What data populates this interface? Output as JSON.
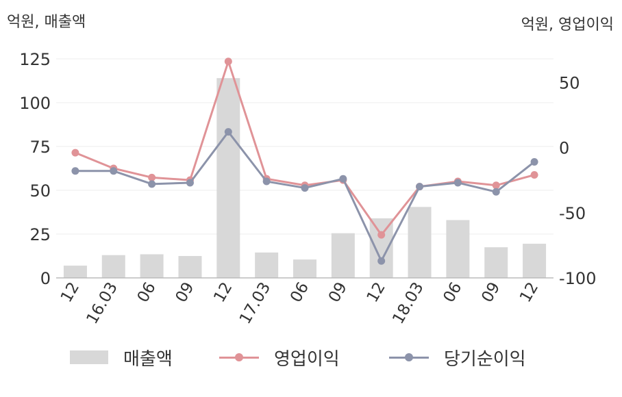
{
  "units": {
    "left": "억원, 매출액",
    "right": "억원, 영업이익"
  },
  "chart_data": {
    "type": "bar+line",
    "categories": [
      "12",
      "16.03",
      "06",
      "09",
      "12",
      "17.03",
      "06",
      "09",
      "12",
      "18.03",
      "06",
      "09",
      "12"
    ],
    "series": [
      {
        "name": "매출액",
        "type": "bar",
        "axis": "left",
        "color": "#d8d8d8",
        "values": [
          7,
          13,
          13.5,
          12.5,
          114,
          14.5,
          10.5,
          25.5,
          34,
          40.5,
          33,
          17.5,
          19.5
        ]
      },
      {
        "name": "영업이익",
        "type": "line",
        "axis": "right",
        "color": "#e09397",
        "values": [
          -4,
          -16,
          -23,
          -25,
          66,
          -24,
          -29,
          -25,
          -67,
          -30,
          -26,
          -29,
          -21
        ]
      },
      {
        "name": "당기순이익",
        "type": "line",
        "axis": "right",
        "color": "#8c93aa",
        "values": [
          -18,
          -18,
          -28,
          -27,
          12,
          -26,
          -31,
          -24,
          -87,
          -30,
          -27,
          -34,
          -11
        ]
      }
    ],
    "left_axis": {
      "ylim": [
        0,
        125
      ],
      "ticks": [
        "0",
        "25",
        "50",
        "75",
        "100",
        "125"
      ],
      "tick_values": [
        0,
        25,
        50,
        75,
        100,
        125
      ]
    },
    "right_axis": {
      "ylim": [
        -100,
        68
      ],
      "ticks": [
        "-100",
        "-50",
        "0",
        "50"
      ],
      "tick_values": [
        -100,
        -50,
        0,
        50
      ]
    },
    "grid": true,
    "legend_position": "bottom"
  },
  "legend": [
    {
      "label": "매출액",
      "kind": "bar",
      "color": "#d8d8d8"
    },
    {
      "label": "영업이익",
      "kind": "line",
      "color": "#e09397"
    },
    {
      "label": "당기순이익",
      "kind": "line",
      "color": "#8c93aa"
    }
  ]
}
